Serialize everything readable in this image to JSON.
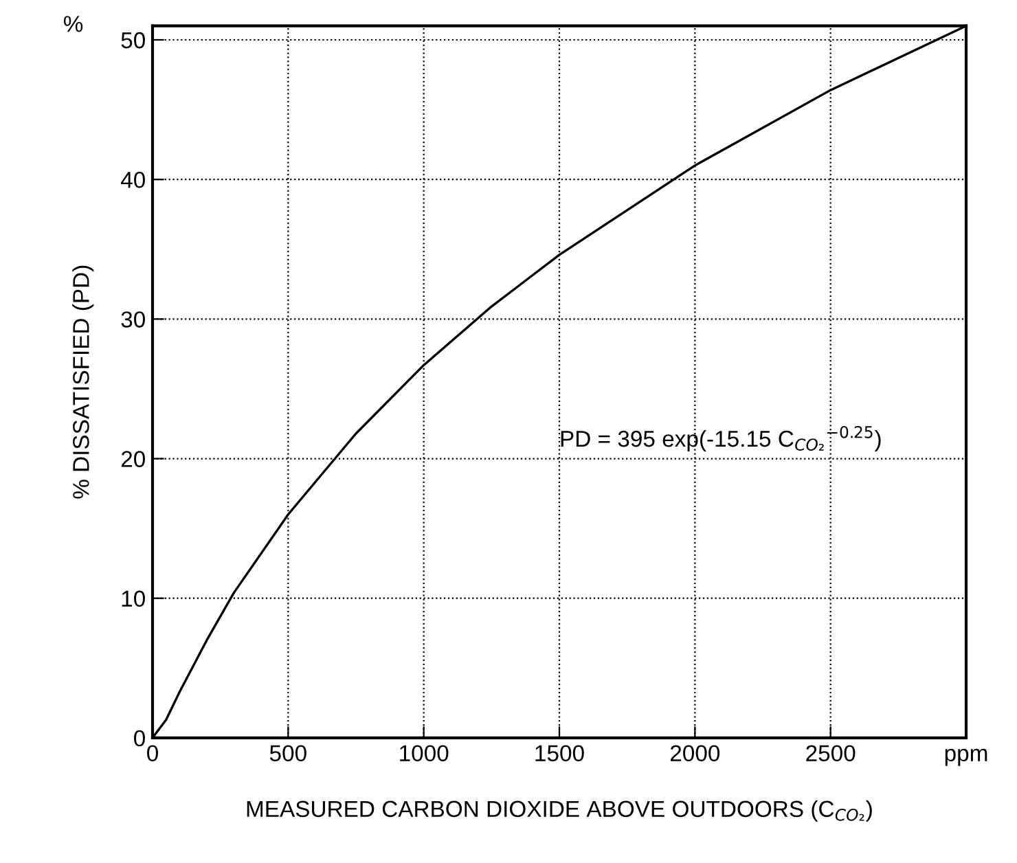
{
  "chart_data": {
    "type": "line",
    "xlabel": "MEASURED CARBON DIOXIDE ABOVE OUTDOORS (C$_{CO₂}$)",
    "ylabel": "% DISSATISFIED (PD)",
    "annotations": [
      "%",
      "PD = 395 exp(-15.15 C$_{CO₂}$$^{−0.25}$)"
    ],
    "x": [
      0,
      50,
      100,
      200,
      300,
      500,
      750,
      1000,
      1250,
      1500,
      2000,
      2500,
      3000
    ],
    "series": [
      {
        "color": "#000000",
        "values": [
          0,
          1.3,
          3.3,
          7.0,
          10.4,
          16.0,
          21.8,
          26.7,
          30.9,
          34.6,
          41.0,
          46.4,
          51.0
        ]
      }
    ],
    "xlim": [
      0,
      3000
    ],
    "ylim": [
      0,
      51
    ],
    "xticks": [
      0,
      500,
      1000,
      1500,
      2000,
      2500,
      {
        "value": 3000,
        "label": "ppm"
      }
    ],
    "yticks": [
      0,
      10,
      20,
      30,
      40,
      50
    ],
    "grid": true,
    "legend": false,
    "marker": "none",
    "line_style": "solid"
  }
}
